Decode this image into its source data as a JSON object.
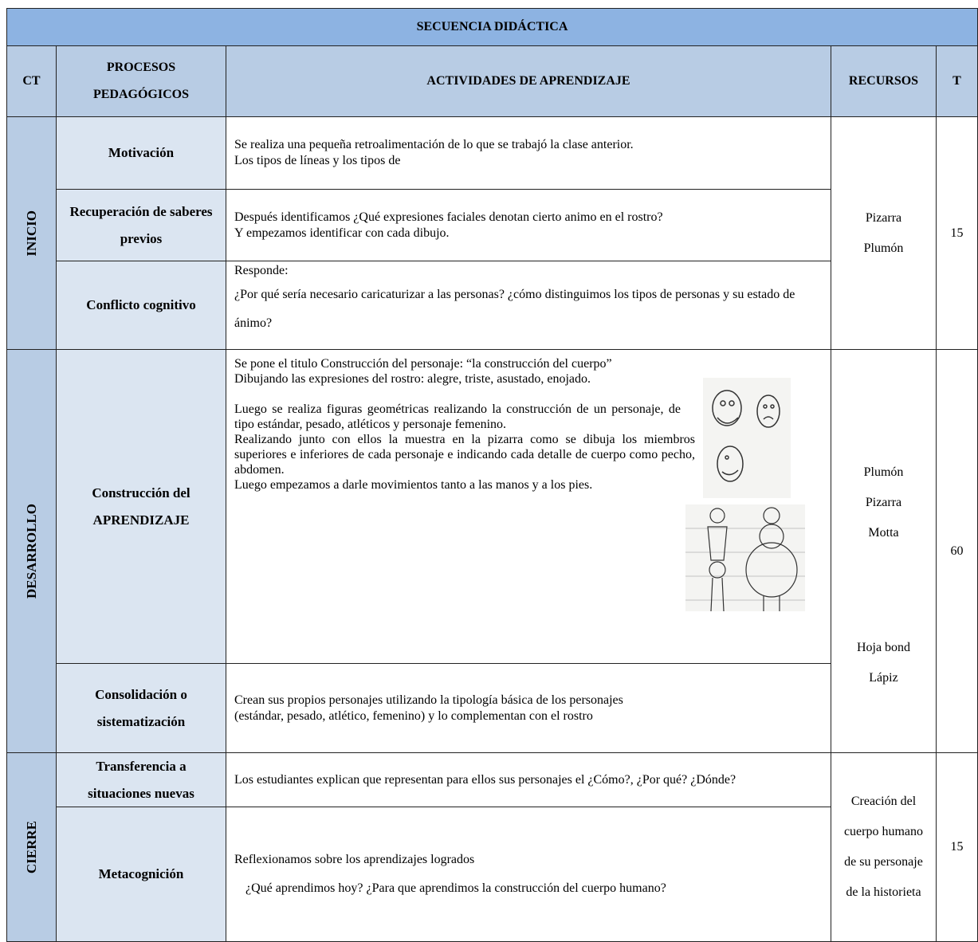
{
  "title": "SECUENCIA DIDÁCTICA",
  "header": [
    "CT",
    "PROCESOS PEDAGÓGICOS",
    "ACTIVIDADES DE APRENDIZAJE",
    "RECURSOS",
    "T"
  ],
  "stages": [
    {
      "name": "INICIO",
      "time": 15,
      "resources": [
        [
          "Pizarra",
          "Plumón"
        ]
      ],
      "rows": [
        {
          "process": "Motivación",
          "activity": [
            "Se realiza una pequeña retroalimentación de lo que se trabajó la clase anterior.",
            "Los tipos de líneas y los tipos de"
          ]
        },
        {
          "process": "Recuperación de saberes previos",
          "activity": [
            "Después identificamos ¿Qué expresiones faciales denotan cierto animo en el rostro?",
            "Y empezamos identificar con cada dibujo."
          ]
        },
        {
          "process": "Conflicto cognitivo",
          "activity": [
            "Responde:",
            "¿Por qué sería necesario caricaturizar a las personas? ¿cómo distinguimos los tipos de personas y su estado de ánimo?"
          ]
        }
      ]
    },
    {
      "name": "DESARROLLO",
      "time": 60,
      "resources": [
        [
          "Plumón",
          "Pizarra",
          "Motta"
        ],
        [
          "Hoja bond",
          "Lápiz"
        ]
      ],
      "rows": [
        {
          "process": "Construcción del APRENDIZAJE",
          "activity": [
            "Se pone el titulo Construcción del personaje: “la construcción del cuerpo”",
            "Dibujando las expresiones del rostro: alegre, triste, asustado, enojado.",
            "Luego se realiza figuras geométricas realizando la construcción de un personaje, de tipo estándar, pesado, atléticos y personaje femenino.",
            "Realizando junto con ellos la muestra en la pizarra como se dibuja los miembros superiores e inferiores de cada personaje e indicando cada detalle de cuerpo como pecho, abdomen.",
            "Luego empezamos a darle movimientos tanto a las manos y a los pies."
          ]
        },
        {
          "process": "Consolidación o sistematización",
          "activity": [
            "Crean  sus propios personajes utilizando la tipología básica de los personajes",
            "(estándar, pesado, atlético, femenino) y lo complementan con el rostro"
          ]
        }
      ]
    },
    {
      "name": "CIERRE",
      "time": 15,
      "resources": [
        [
          "Creación del cuerpo humano de su personaje de la historieta"
        ]
      ],
      "rows": [
        {
          "process": "Transferencia a situaciones nuevas",
          "activity": [
            "Los estudiantes explican que representan para ellos sus personajes el ¿Cómo?, ¿Por qué? ¿Dónde?"
          ]
        },
        {
          "process": "Metacognición",
          "activity": [
            "Reflexionamos sobre los aprendizajes logrados",
            "¿Qué aprendimos hoy? ¿Para que aprendimos la construcción del cuerpo humano?"
          ]
        }
      ]
    }
  ]
}
